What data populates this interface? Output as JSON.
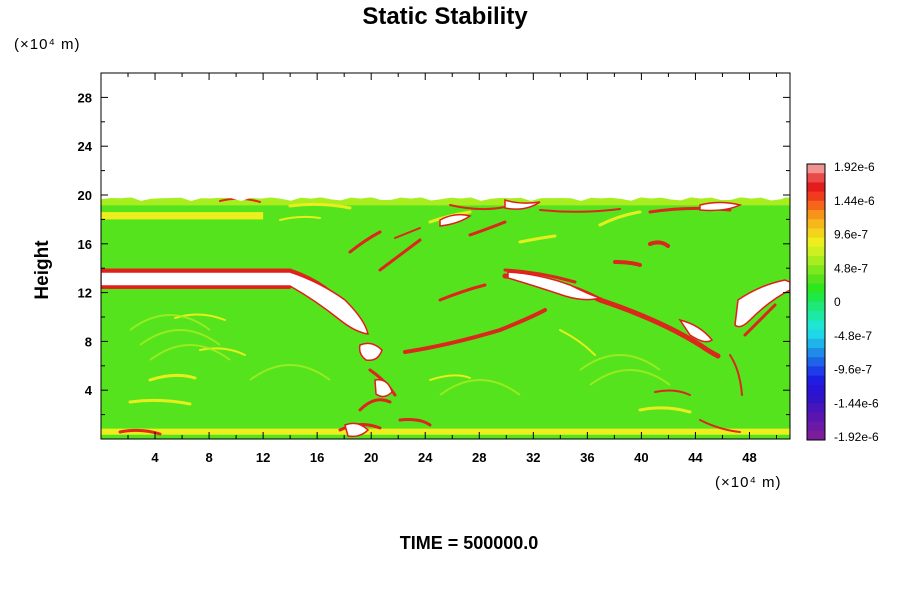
{
  "chart_data": {
    "type": "heatmap",
    "title": "Static Stability",
    "xlabel": "",
    "ylabel": "Height",
    "x_unit_label": "(×10⁴ m)",
    "y_unit_label": "(×10⁴ m)",
    "xlim": [
      0,
      51
    ],
    "ylim": [
      0,
      30
    ],
    "x_ticks": [
      4,
      8,
      12,
      16,
      20,
      24,
      28,
      32,
      36,
      40,
      44,
      48
    ],
    "y_ticks": [
      4,
      8,
      12,
      16,
      20,
      24,
      28
    ],
    "data_top": 19.7,
    "grid": false,
    "legend_placement": "right",
    "colorbar": {
      "labels": [
        "1.92e-6",
        "1.44e-6",
        "9.6e-7",
        "4.8e-7",
        "0",
        "-4.8e-7",
        "-9.6e-7",
        "-1.44e-6",
        "-1.92e-6"
      ],
      "colors": [
        "#f29292",
        "#ea4a4a",
        "#e31c1c",
        "#f03c1e",
        "#f5661a",
        "#f7921a",
        "#f5b71a",
        "#f2d51a",
        "#eeee1e",
        "#cdf020",
        "#a8ee1e",
        "#7de81e",
        "#55e31e",
        "#2ee61e",
        "#1ee84a",
        "#1ee87a",
        "#1ee8a5",
        "#1ee6d0",
        "#1ed8e8",
        "#1eb4e8",
        "#1e8ce8",
        "#1e64e8",
        "#1e3ce8",
        "#1e1ee3",
        "#2814d6",
        "#3214c8",
        "#4814bc",
        "#5a14b0",
        "#6a1aa6",
        "#7a1e9e"
      ]
    },
    "background_color": "#55e31e",
    "white_color": "#ffffff",
    "structures": [
      {
        "kind": "band",
        "x0": 0,
        "x1": 51,
        "y": 19.4,
        "thick": 0.5,
        "color": "#a8ee1e"
      },
      {
        "kind": "band",
        "x0": 0,
        "x1": 12,
        "y": 18.3,
        "thick": 0.6,
        "color": "#eeee1e"
      },
      {
        "kind": "band",
        "x0": 0,
        "x1": 14,
        "y": 13.4,
        "thick": 0.9,
        "color": "#e31c1c"
      },
      {
        "kind": "band",
        "x0": 0,
        "x1": 14,
        "y": 12.5,
        "thick": 0.4,
        "color": "#e31c1c"
      },
      {
        "kind": "band",
        "x0": 0,
        "x1": 51,
        "y": 0.6,
        "thick": 0.5,
        "color": "#eeee1e"
      }
    ],
    "time_label": "TIME = 500000.0"
  }
}
